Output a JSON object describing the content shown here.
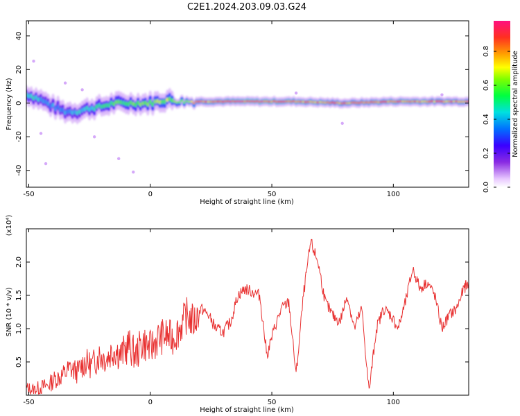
{
  "title": "C2E1.2024.203.09.03.G24",
  "chart_data": [
    {
      "type": "heatmap",
      "xlabel": "Height of straight line (km)",
      "ylabel": "Frequency (Hz)",
      "xlim": [
        -51,
        131
      ],
      "ylim": [
        -50,
        49
      ],
      "xticks": [
        -50,
        0,
        50,
        100
      ],
      "yticks": [
        -40,
        -20,
        0,
        20,
        40
      ],
      "colorbar": {
        "label": "Normalized spectral amplitude",
        "range": [
          0,
          0.98
        ],
        "ticks": [
          0.0,
          0.2,
          0.4,
          0.6,
          0.8
        ],
        "tick_labels": [
          "0.0",
          "0.2",
          "0.4",
          "0.6",
          "0.8"
        ]
      },
      "ridge": {
        "description_points": [
          {
            "x": -50,
            "freq": 5,
            "amp": 0.5
          },
          {
            "x": -45,
            "freq": 2,
            "amp": 0.45
          },
          {
            "x": -40,
            "freq": -2,
            "amp": 0.4
          },
          {
            "x": -35,
            "freq": -5,
            "amp": 0.4
          },
          {
            "x": -30,
            "freq": -5,
            "amp": 0.45
          },
          {
            "x": -25,
            "freq": -3,
            "amp": 0.5
          },
          {
            "x": -20,
            "freq": -2,
            "amp": 0.55
          },
          {
            "x": -15,
            "freq": 0,
            "amp": 0.6
          },
          {
            "x": -10,
            "freq": 0,
            "amp": 0.6
          },
          {
            "x": 0,
            "freq": 0,
            "amp": 0.65
          },
          {
            "x": 7,
            "freq": 2,
            "amp": 0.7
          },
          {
            "x": 12,
            "freq": 1,
            "amp": 0.7
          },
          {
            "x": 20,
            "freq": 1,
            "amp": 0.85
          },
          {
            "x": 40,
            "freq": 1,
            "amp": 0.95
          },
          {
            "x": 60,
            "freq": 1,
            "amp": 0.9
          },
          {
            "x": 80,
            "freq": 0,
            "amp": 0.85
          },
          {
            "x": 100,
            "freq": 1,
            "amp": 0.9
          },
          {
            "x": 130,
            "freq": 1,
            "amp": 0.85
          }
        ]
      },
      "grid": false
    },
    {
      "type": "line",
      "xlabel": "Height of straight line (km)",
      "ylabel": "SNR (10 * v/v)",
      "y_multiplier_label": "(x10⁴)",
      "xlim": [
        -51,
        131
      ],
      "ylim": [
        0,
        2.5
      ],
      "xticks": [
        -50,
        0,
        50,
        100
      ],
      "yticks": [
        0.5,
        1.0,
        1.5,
        2.0
      ],
      "ytick_labels": [
        "0.5",
        "1.0",
        "1.5",
        "2.0"
      ],
      "color": "#e83030",
      "series": [
        {
          "x": [
            -51,
            -48,
            -45,
            -42,
            -39,
            -36,
            -33,
            -30,
            -27,
            -24,
            -21,
            -18,
            -15,
            -12,
            -9,
            -6,
            -3,
            0,
            3,
            6,
            9,
            12,
            15,
            18,
            21,
            24,
            27,
            30,
            33,
            36,
            39,
            42,
            45,
            48,
            51,
            54,
            57,
            60,
            63,
            66,
            69,
            72,
            75,
            78,
            81,
            84,
            87,
            90,
            93,
            96,
            99,
            102,
            105,
            108,
            111,
            114,
            117,
            120,
            123,
            126,
            129,
            131
          ],
          "y": [
            0.1,
            0.08,
            0.12,
            0.15,
            0.25,
            0.3,
            0.4,
            0.35,
            0.5,
            0.45,
            0.6,
            0.55,
            0.7,
            0.6,
            0.75,
            0.6,
            0.8,
            0.7,
            0.85,
            0.9,
            0.85,
            1.0,
            1.2,
            1.1,
            1.3,
            1.2,
            1.0,
            0.95,
            1.1,
            1.5,
            1.6,
            1.55,
            1.5,
            0.6,
            1.0,
            1.3,
            1.4,
            0.3,
            1.5,
            2.3,
            2.0,
            1.4,
            1.2,
            1.1,
            1.5,
            1.0,
            1.3,
            0.05,
            1.0,
            1.3,
            1.2,
            1.0,
            1.4,
            1.9,
            1.6,
            1.7,
            1.5,
            1.0,
            1.2,
            1.3,
            1.6,
            1.7
          ]
        }
      ],
      "grid": false
    }
  ]
}
